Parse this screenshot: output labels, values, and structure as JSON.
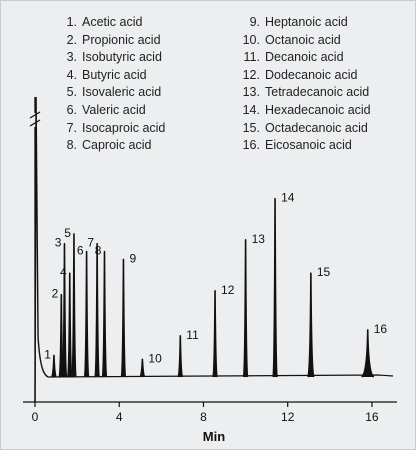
{
  "chart_data": {
    "type": "line",
    "xlabel": "Min",
    "xlim": [
      0,
      17
    ],
    "x_ticks": [
      0,
      4,
      8,
      12,
      16
    ],
    "y_ticks": [],
    "grid": false,
    "legend_position": "top",
    "legend": [
      {
        "num": "1.",
        "name": "Acetic acid"
      },
      {
        "num": "2.",
        "name": "Propionic acid"
      },
      {
        "num": "3.",
        "name": "Isobutyric acid"
      },
      {
        "num": "4.",
        "name": "Butyric acid"
      },
      {
        "num": "5.",
        "name": "Isovaleric acid"
      },
      {
        "num": "6.",
        "name": "Valeric acid"
      },
      {
        "num": "7.",
        "name": "Isocaproic acid"
      },
      {
        "num": "8.",
        "name": "Caproic acid"
      },
      {
        "num": "9.",
        "name": "Heptanoic acid"
      },
      {
        "num": "10.",
        "name": "Octanoic acid"
      },
      {
        "num": "11.",
        "name": "Decanoic acid"
      },
      {
        "num": "12.",
        "name": "Dodecanoic acid"
      },
      {
        "num": "13.",
        "name": "Tetradecanoic acid"
      },
      {
        "num": "14.",
        "name": "Hexadecanoic acid"
      },
      {
        "num": "15.",
        "name": "Octadecanoic acid"
      },
      {
        "num": "16.",
        "name": "Eicosanoic acid"
      }
    ],
    "peaks": [
      {
        "label": "1",
        "x": 0.9,
        "y": 0.11
      },
      {
        "label": "2",
        "x": 1.25,
        "y": 0.42
      },
      {
        "label": "3",
        "x": 1.4,
        "y": 0.68
      },
      {
        "label": "4",
        "x": 1.65,
        "y": 0.53
      },
      {
        "label": "5",
        "x": 1.85,
        "y": 0.73
      },
      {
        "label": "6",
        "x": 2.45,
        "y": 0.64
      },
      {
        "label": "7",
        "x": 2.95,
        "y": 0.68
      },
      {
        "label": "8",
        "x": 3.3,
        "y": 0.64
      },
      {
        "label": "9",
        "x": 4.2,
        "y": 0.6
      },
      {
        "label": "10",
        "x": 5.1,
        "y": 0.09
      },
      {
        "label": "11",
        "x": 6.9,
        "y": 0.21
      },
      {
        "label": "12",
        "x": 8.55,
        "y": 0.44
      },
      {
        "label": "13",
        "x": 10.0,
        "y": 0.7
      },
      {
        "label": "14",
        "x": 11.4,
        "y": 0.91
      },
      {
        "label": "15",
        "x": 13.1,
        "y": 0.53
      },
      {
        "label": "16",
        "x": 15.8,
        "y": 0.24
      }
    ],
    "solvent_front": {
      "x": 0.05,
      "y": 1.0,
      "axis_break": true
    }
  }
}
